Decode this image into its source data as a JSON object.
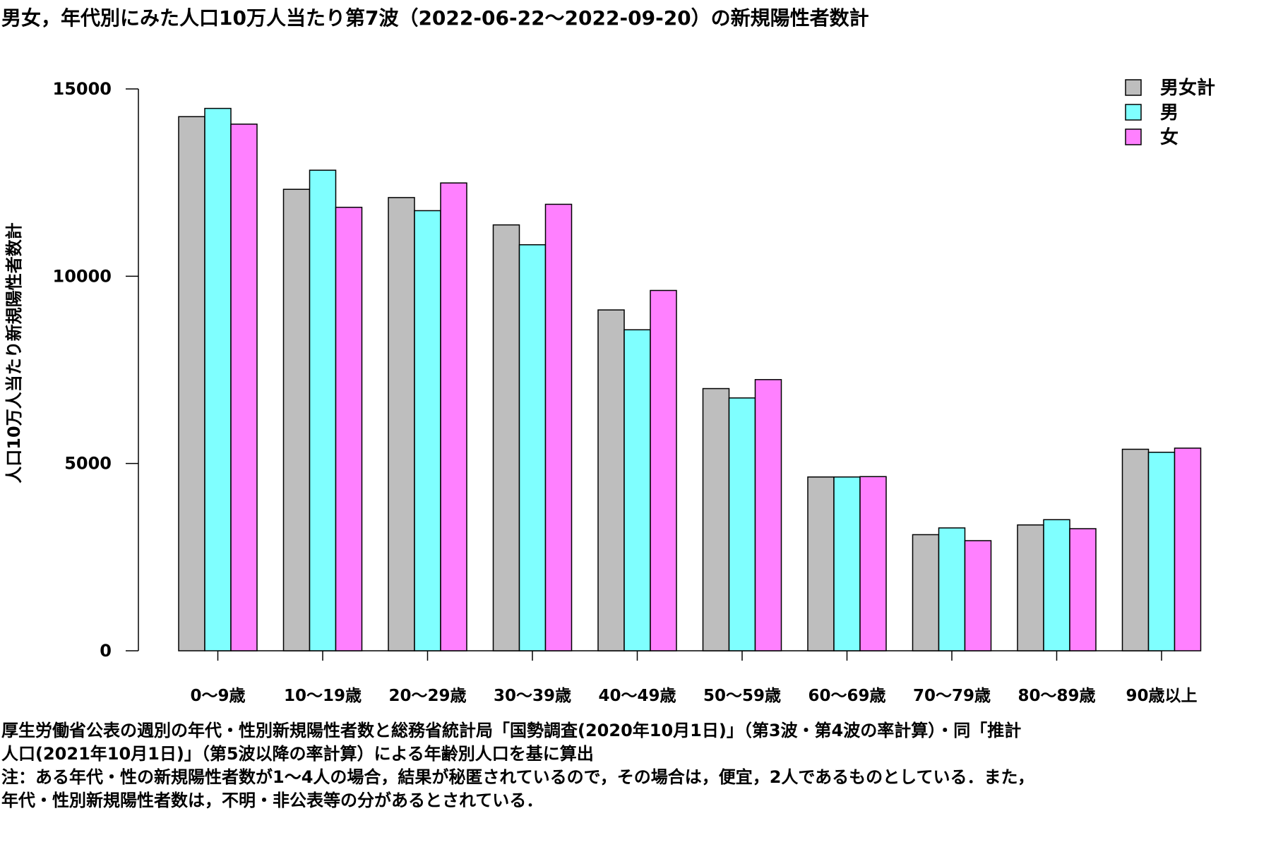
{
  "chart_data": {
    "type": "bar",
    "title": "男女，年代別にみた人口10万人当たり第7波（2022-06-22～2022-09-20）の新規陽性者数計",
    "xlabel": "",
    "ylabel": "人口10万人当たり新規陽性者数計",
    "ylim": [
      0,
      15000
    ],
    "yticks": [
      "0",
      "5000",
      "10000",
      "15000"
    ],
    "categories": [
      "0～9歳",
      "10～19歳",
      "20～29歳",
      "30～39歳",
      "40～49歳",
      "50～59歳",
      "60～69歳",
      "70～79歳",
      "80～89歳",
      "90歳以上"
    ],
    "series": [
      {
        "name": "男女計",
        "color": "#bebebe",
        "values": [
          14260,
          12320,
          12100,
          11370,
          9100,
          7000,
          4640,
          3100,
          3360,
          5380
        ]
      },
      {
        "name": "男",
        "color": "#7fffff",
        "values": [
          14480,
          12830,
          11750,
          10840,
          8570,
          6750,
          4640,
          3280,
          3500,
          5300
        ]
      },
      {
        "name": "女",
        "color": "#ff80ff",
        "values": [
          14060,
          11840,
          12490,
          11920,
          9620,
          7240,
          4650,
          2940,
          3260,
          5410
        ]
      }
    ],
    "legend": "top-right",
    "grid": false
  },
  "notes": [
    "厚生労働省公表の週別の年代・性別新規陽性者数と総務省統計局「国勢調査(2020年10月1日)」（第3波・第4波の率計算）・同「推計",
    "人口(2021年10月1日)」（第5波以降の率計算）による年齢別人口を基に算出",
    "注：ある年代・性の新規陽性者数が1～4人の場合，結果が秘匿されているので，その場合は，便宜，2人であるものとしている．また，",
    "年代・性別新規陽性者数は，不明・非公表等の分があるとされている．"
  ]
}
